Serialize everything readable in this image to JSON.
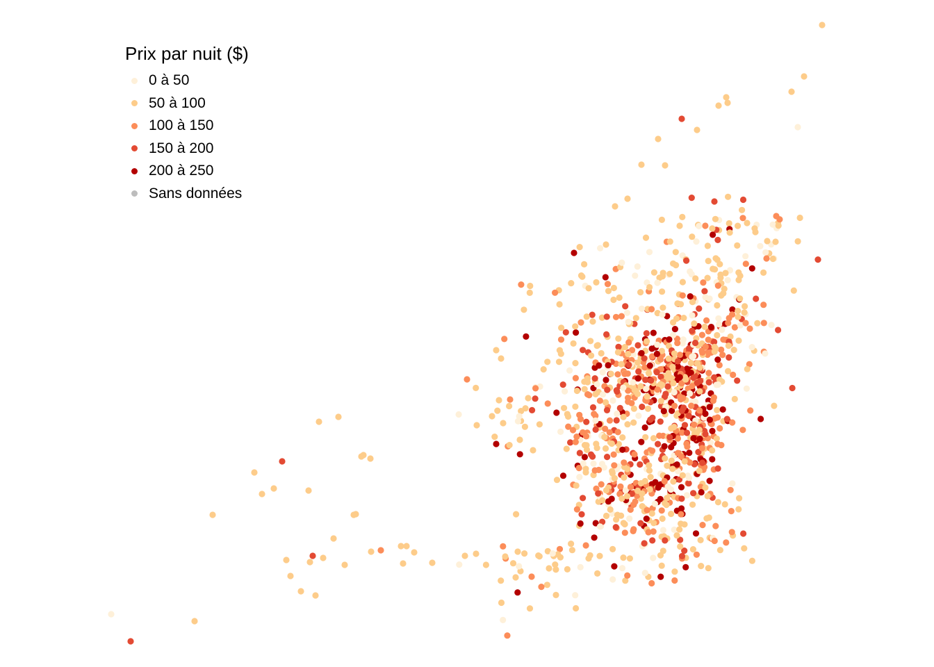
{
  "chart_data": {
    "type": "scatter",
    "title": "",
    "xlabel": "",
    "ylabel": "",
    "grid": false,
    "legend_position": "top-left",
    "legend": {
      "title": "Prix par nuit ($)",
      "items": [
        {
          "label": "0 à 50",
          "color": "#fef0d9"
        },
        {
          "label": "50 à 100",
          "color": "#fdcc8a"
        },
        {
          "label": "100 à 150",
          "color": "#fc8d59"
        },
        {
          "label": "150 à 200",
          "color": "#e34a33"
        },
        {
          "label": "200 à 250",
          "color": "#b30000"
        },
        {
          "label": "Sans données",
          "color": "#bdbdbd"
        }
      ]
    },
    "marker_color": {
      "outlier_low_left": "#fef0d9",
      "outlier_low_right": "#fc8d59"
    }
  }
}
